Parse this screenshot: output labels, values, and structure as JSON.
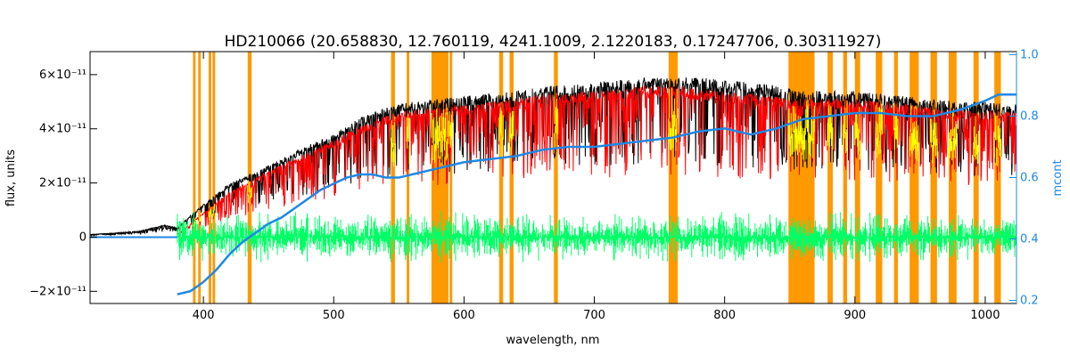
{
  "chart_data": {
    "type": "line",
    "title": "HD210066    (20.658830, 12.760119, 4241.1009, 2.1220183, 0.17247706, 0.30311927)",
    "xlabel": "wavelength, nm",
    "ylabel": "flux, units",
    "y2label": "mcont",
    "xlim": [
      313,
      1024
    ],
    "ylim": [
      -2.45e-11,
      6.85e-11
    ],
    "y2lim": [
      0.19,
      1.01
    ],
    "x_ticks": [
      400,
      500,
      600,
      700,
      800,
      900,
      1000
    ],
    "y_ticks": [
      {
        "value": -2e-11,
        "label": "−2×10⁻¹¹"
      },
      {
        "value": 0,
        "label": "0"
      },
      {
        "value": 2e-11,
        "label": "2×10⁻¹¹"
      },
      {
        "value": 4e-11,
        "label": "4×10⁻¹¹"
      },
      {
        "value": 6e-11,
        "label": "6×10⁻¹¹"
      }
    ],
    "y2_ticks": [
      {
        "value": 0.2,
        "label": "0.2"
      },
      {
        "value": 0.4,
        "label": "0.4"
      },
      {
        "value": 0.6,
        "label": "0.6"
      },
      {
        "value": 0.8,
        "label": "0.8"
      },
      {
        "value": 1.0,
        "label": "1.0"
      }
    ],
    "masked_regions_nm": [
      [
        392,
        394
      ],
      [
        396,
        398
      ],
      [
        404,
        406
      ],
      [
        407,
        409
      ],
      [
        434,
        437
      ],
      [
        544,
        547
      ],
      [
        556,
        558
      ],
      [
        575,
        588
      ],
      [
        589,
        591
      ],
      [
        627,
        630
      ],
      [
        635,
        638
      ],
      [
        669,
        672
      ],
      [
        757,
        764
      ],
      [
        849,
        869
      ],
      [
        879,
        883
      ],
      [
        891,
        894
      ],
      [
        900,
        904
      ],
      [
        916,
        921
      ],
      [
        930,
        933
      ],
      [
        942,
        949
      ],
      [
        958,
        963
      ],
      [
        972,
        978
      ],
      [
        991,
        995
      ],
      [
        1007,
        1012
      ]
    ],
    "series": [
      {
        "name": "",
        "color": "#000000",
        "x": [
          313,
          330,
          350,
          370,
          380,
          390,
          400,
          410,
          420,
          440,
          460,
          480,
          500,
          520,
          540,
          560,
          580,
          600,
          620,
          640,
          660,
          680,
          700,
          720,
          740,
          760,
          780,
          800,
          820,
          840,
          860,
          880,
          900,
          920,
          940,
          960,
          980,
          1000,
          1024
        ],
        "y": [
          1e-12,
          1.5e-12,
          2.2e-12,
          4.5e-12,
          3.5e-12,
          8e-12,
          1.2e-11,
          1.6e-11,
          2e-11,
          2.4e-11,
          2.9e-11,
          3.4e-11,
          3.8e-11,
          4.4e-11,
          4.8e-11,
          5e-11,
          5.1e-11,
          5.2e-11,
          5.3e-11,
          5.4e-11,
          5.6e-11,
          5.6e-11,
          5.7e-11,
          5.8e-11,
          5.9e-11,
          5.9e-11,
          5.9e-11,
          5.8e-11,
          5.7e-11,
          5.6e-11,
          5.4e-11,
          5.4e-11,
          5.4e-11,
          5.3e-11,
          5.2e-11,
          5.1e-11,
          5e-11,
          5e-11,
          4.9e-11
        ]
      },
      {
        "name": "",
        "color": "#ff0000",
        "x": [
          380,
          400,
          420,
          440,
          460,
          480,
          500,
          520,
          540,
          560,
          580,
          600,
          620,
          640,
          660,
          680,
          700,
          720,
          740,
          760,
          780,
          800,
          820,
          840,
          860,
          880,
          900,
          920,
          940,
          960,
          980,
          1000,
          1024
        ],
        "y": [
          1e-12,
          9e-12,
          1.7e-11,
          2.2e-11,
          2.7e-11,
          3.1e-11,
          3.6e-11,
          4.1e-11,
          4.5e-11,
          4.7e-11,
          4.8e-11,
          4.9e-11,
          5e-11,
          5.1e-11,
          5.3e-11,
          5.3e-11,
          5.4e-11,
          5.5e-11,
          5.6e-11,
          5.6e-11,
          5.5e-11,
          5.4e-11,
          5.3e-11,
          5.2e-11,
          5.1e-11,
          5.1e-11,
          5.1e-11,
          5e-11,
          4.9e-11,
          4.8e-11,
          4.7e-11,
          4.7e-11,
          4.6e-11
        ]
      },
      {
        "name": "",
        "color": "#00ff66",
        "x": [
          380,
          1024
        ],
        "y": [
          0,
          0
        ],
        "noise_amplitude": 1e-11
      },
      {
        "name": "",
        "color": "#1e88e5",
        "axis": "right",
        "x": [
          380,
          390,
          400,
          410,
          420,
          430,
          440,
          450,
          460,
          470,
          480,
          490,
          500,
          510,
          520,
          530,
          540,
          550,
          560,
          570,
          580,
          590,
          600,
          620,
          640,
          660,
          680,
          700,
          720,
          740,
          760,
          780,
          800,
          810,
          820,
          840,
          860,
          880,
          900,
          920,
          940,
          960,
          980,
          1000,
          1010,
          1024
        ],
        "y": [
          0.22,
          0.23,
          0.26,
          0.3,
          0.35,
          0.39,
          0.42,
          0.45,
          0.47,
          0.5,
          0.53,
          0.56,
          0.58,
          0.6,
          0.61,
          0.61,
          0.6,
          0.6,
          0.61,
          0.62,
          0.63,
          0.64,
          0.65,
          0.66,
          0.67,
          0.69,
          0.7,
          0.7,
          0.71,
          0.72,
          0.73,
          0.75,
          0.76,
          0.75,
          0.74,
          0.76,
          0.79,
          0.8,
          0.81,
          0.81,
          0.8,
          0.8,
          0.82,
          0.85,
          0.87,
          0.87
        ]
      }
    ]
  }
}
